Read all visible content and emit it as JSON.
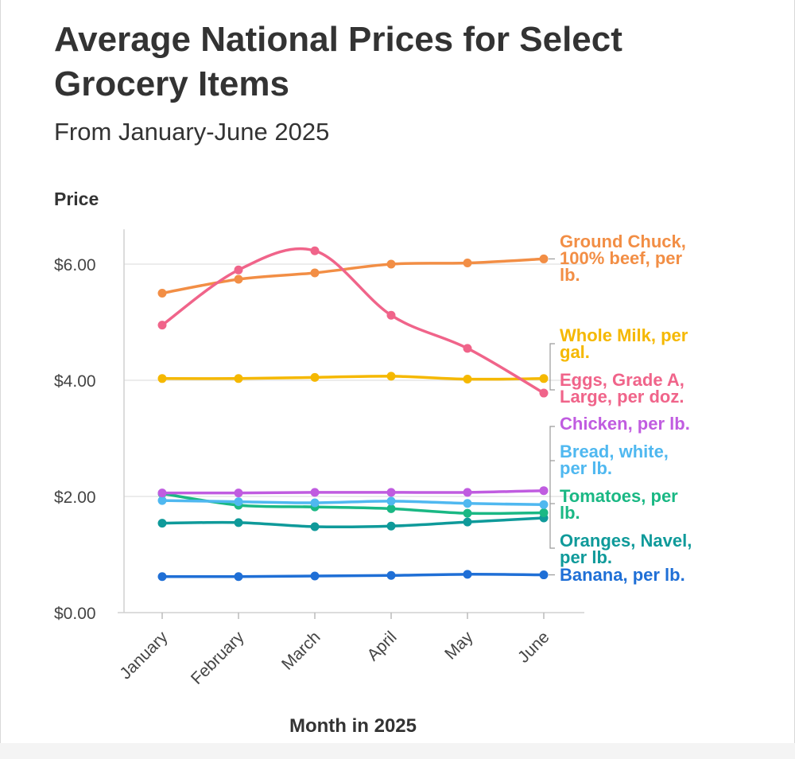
{
  "title": "Average National Prices for Select Grocery Items",
  "subtitle": "From January-June 2025",
  "chart_data": {
    "type": "line",
    "title": "Average National Prices for Select Grocery Items",
    "subtitle": "From January-June 2025",
    "xlabel": "Month in 2025",
    "ylabel": "Price",
    "categories": [
      "January",
      "February",
      "March",
      "April",
      "May",
      "June"
    ],
    "ylim": [
      0,
      6.6
    ],
    "yticks": [
      0,
      2,
      4,
      6
    ],
    "ytick_labels": [
      "$0.00",
      "$2.00",
      "$4.00",
      "$6.00"
    ],
    "grid": true,
    "series": [
      {
        "name": "Ground Chuck, 100% beef, per lb.",
        "label_lines": [
          "Ground Chuck,",
          "100% beef, per",
          "lb."
        ],
        "color": "#f28e45",
        "values": [
          5.5,
          5.74,
          5.85,
          6.0,
          6.02,
          6.09
        ]
      },
      {
        "name": "Whole Milk, per gal.",
        "label_lines": [
          "Whole Milk, per",
          "gal."
        ],
        "color": "#f5b800",
        "values": [
          4.03,
          4.03,
          4.05,
          4.07,
          4.02,
          4.03
        ]
      },
      {
        "name": "Eggs, Grade A, Large, per doz.",
        "label_lines": [
          "Eggs, Grade A,",
          "Large, per doz."
        ],
        "color": "#f0648a",
        "values": [
          4.95,
          5.9,
          6.23,
          5.12,
          4.55,
          3.78
        ]
      },
      {
        "name": "Chicken, per lb.",
        "label_lines": [
          "Chicken, per lb."
        ],
        "color": "#c05ce0",
        "values": [
          2.06,
          2.06,
          2.07,
          2.07,
          2.07,
          2.1
        ]
      },
      {
        "name": "Bread, white, per lb.",
        "label_lines": [
          "Bread, white,",
          "per lb."
        ],
        "color": "#4fb8f0",
        "values": [
          1.93,
          1.91,
          1.89,
          1.92,
          1.88,
          1.86
        ]
      },
      {
        "name": "Tomatoes, per lb.",
        "label_lines": [
          "Tomatoes, per",
          "lb."
        ],
        "color": "#1ab884",
        "values": [
          2.05,
          1.85,
          1.82,
          1.79,
          1.71,
          1.72
        ]
      },
      {
        "name": "Oranges, Navel, per lb.",
        "label_lines": [
          "Oranges, Navel,",
          "per lb."
        ],
        "color": "#0f9a9a",
        "values": [
          1.54,
          1.55,
          1.48,
          1.49,
          1.56,
          1.63
        ]
      },
      {
        "name": "Banana, per lb.",
        "label_lines": [
          "Banana, per lb."
        ],
        "color": "#1f6fd6",
        "values": [
          0.62,
          0.62,
          0.63,
          0.64,
          0.66,
          0.65
        ]
      }
    ]
  }
}
